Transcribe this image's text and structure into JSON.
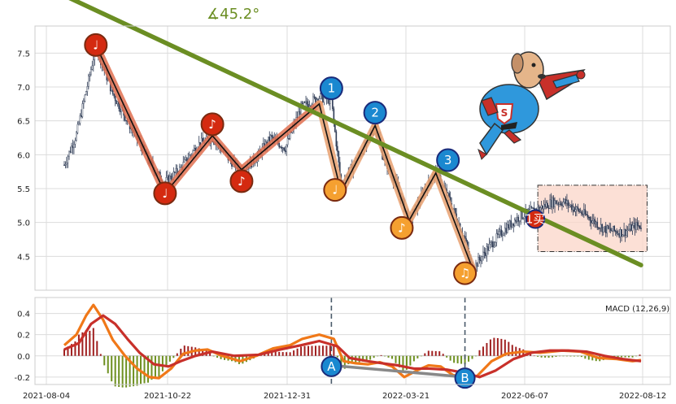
{
  "angle_label": "∡45.2°",
  "macd_label": "MACD (12,26,9)",
  "chart_data": [
    {
      "type": "candlestick",
      "x_tick_labels": [
        "2021-08-04",
        "2021-10-22",
        "2021-12-31",
        "2022-03-21",
        "2022-06-07",
        "2022-08-12"
      ],
      "ylim": [
        4.0,
        7.9
      ],
      "y_ticks": [
        4.5,
        5.0,
        5.5,
        6.0,
        6.5,
        7.0,
        7.5
      ],
      "grid": true,
      "colors": {
        "up": "#ffffff",
        "down": "#2e3b55",
        "trend": "#6b8e23",
        "zigzag_red": "#e07050",
        "zigzag_orange": "#e8a070",
        "box_fill": "#fbd5c8",
        "marker_red": "#d42a10",
        "marker_blue": "#1a88d0",
        "marker_orange": "#f5a030"
      },
      "price_path": [
        [
          0,
          5.85
        ],
        [
          10,
          6.3
        ],
        [
          20,
          7.1
        ],
        [
          26,
          7.6
        ],
        [
          40,
          6.9
        ],
        [
          55,
          6.4
        ],
        [
          70,
          5.9
        ],
        [
          82,
          5.58
        ],
        [
          95,
          5.78
        ],
        [
          110,
          6.15
        ],
        [
          122,
          6.25
        ],
        [
          135,
          5.95
        ],
        [
          146,
          5.75
        ],
        [
          158,
          5.95
        ],
        [
          170,
          6.25
        ],
        [
          182,
          6.1
        ],
        [
          195,
          6.7
        ],
        [
          210,
          6.85
        ],
        [
          220,
          6.8
        ],
        [
          228,
          5.55
        ],
        [
          240,
          5.9
        ],
        [
          250,
          6.2
        ],
        [
          256,
          6.45
        ],
        [
          262,
          6.0
        ],
        [
          275,
          5.5
        ],
        [
          284,
          5.0
        ],
        [
          296,
          5.45
        ],
        [
          306,
          5.75
        ],
        [
          318,
          5.3
        ],
        [
          330,
          4.75
        ],
        [
          336,
          4.3
        ],
        [
          348,
          4.6
        ],
        [
          360,
          4.85
        ],
        [
          372,
          5.05
        ],
        [
          382,
          5.15
        ],
        [
          390,
          5.2
        ],
        [
          402,
          5.3
        ],
        [
          412,
          5.3
        ],
        [
          430,
          5.1
        ],
        [
          445,
          4.9
        ],
        [
          460,
          4.85
        ],
        [
          470,
          4.95
        ]
      ],
      "zigzag_main": [
        [
          26,
          7.62
        ],
        [
          83,
          5.43
        ],
        [
          122,
          6.28
        ],
        [
          146,
          5.78
        ],
        [
          210,
          6.75
        ],
        [
          228,
          5.45
        ],
        [
          256,
          6.43
        ],
        [
          284,
          5.03
        ],
        [
          306,
          5.73
        ],
        [
          336,
          4.33
        ]
      ],
      "trendline": [
        [
          0,
          8.35
        ],
        [
          475,
          4.37
        ]
      ],
      "markers": [
        {
          "x": 26,
          "y": 7.62,
          "label": "♩",
          "color": "red"
        },
        {
          "x": 83,
          "y": 5.43,
          "label": "♩",
          "color": "red"
        },
        {
          "x": 122,
          "y": 6.45,
          "label": "♪",
          "color": "red"
        },
        {
          "x": 146,
          "y": 5.61,
          "label": "♪",
          "color": "red"
        },
        {
          "x": 220,
          "y": 6.98,
          "label": "1",
          "color": "blue"
        },
        {
          "x": 223,
          "y": 5.48,
          "label": "♩",
          "color": "orange"
        },
        {
          "x": 256,
          "y": 6.62,
          "label": "2",
          "color": "blue"
        },
        {
          "x": 278,
          "y": 4.92,
          "label": "♪",
          "color": "orange"
        },
        {
          "x": 316,
          "y": 5.92,
          "label": "3",
          "color": "blue"
        },
        {
          "x": 330,
          "y": 4.25,
          "label": "♫",
          "color": "orange"
        },
        {
          "x": 388,
          "y": 5.05,
          "label": "1买",
          "color": "red_small"
        }
      ],
      "box": {
        "x0": 390,
        "x1": 480,
        "y0": 4.57,
        "y1": 5.55
      }
    },
    {
      "type": "macd",
      "ylim": [
        -0.27,
        0.55
      ],
      "y_ticks": [
        -0.2,
        0.0,
        0.2,
        0.4
      ],
      "dif": [
        [
          0,
          0.1
        ],
        [
          10,
          0.2
        ],
        [
          18,
          0.38
        ],
        [
          24,
          0.48
        ],
        [
          32,
          0.34
        ],
        [
          40,
          0.15
        ],
        [
          50,
          0.0
        ],
        [
          60,
          -0.12
        ],
        [
          70,
          -0.2
        ],
        [
          78,
          -0.21
        ],
        [
          88,
          -0.12
        ],
        [
          98,
          0.02
        ],
        [
          108,
          0.05
        ],
        [
          118,
          0.06
        ],
        [
          130,
          0.0
        ],
        [
          145,
          -0.05
        ],
        [
          158,
          0.0
        ],
        [
          172,
          0.07
        ],
        [
          186,
          0.1
        ],
        [
          196,
          0.16
        ],
        [
          210,
          0.2
        ],
        [
          222,
          0.16
        ],
        [
          230,
          -0.05
        ],
        [
          240,
          -0.07
        ],
        [
          250,
          -0.08
        ],
        [
          260,
          -0.06
        ],
        [
          270,
          -0.1
        ],
        [
          280,
          -0.2
        ],
        [
          290,
          -0.14
        ],
        [
          300,
          -0.09
        ],
        [
          310,
          -0.1
        ],
        [
          320,
          -0.18
        ],
        [
          330,
          -0.21
        ],
        [
          340,
          -0.19
        ],
        [
          352,
          -0.05
        ],
        [
          364,
          0.02
        ],
        [
          378,
          0.04
        ],
        [
          392,
          0.03
        ],
        [
          410,
          0.05
        ],
        [
          425,
          0.04
        ],
        [
          440,
          -0.02
        ],
        [
          455,
          -0.03
        ],
        [
          468,
          -0.05
        ],
        [
          475,
          -0.04
        ]
      ],
      "dea": [
        [
          0,
          0.06
        ],
        [
          12,
          0.12
        ],
        [
          22,
          0.3
        ],
        [
          32,
          0.38
        ],
        [
          42,
          0.3
        ],
        [
          52,
          0.16
        ],
        [
          62,
          0.03
        ],
        [
          74,
          -0.08
        ],
        [
          86,
          -0.1
        ],
        [
          96,
          -0.05
        ],
        [
          108,
          0.0
        ],
        [
          122,
          0.04
        ],
        [
          140,
          0.0
        ],
        [
          160,
          0.01
        ],
        [
          178,
          0.06
        ],
        [
          195,
          0.1
        ],
        [
          210,
          0.14
        ],
        [
          225,
          0.09
        ],
        [
          235,
          -0.02
        ],
        [
          250,
          -0.05
        ],
        [
          262,
          -0.07
        ],
        [
          275,
          -0.09
        ],
        [
          288,
          -0.12
        ],
        [
          300,
          -0.12
        ],
        [
          315,
          -0.13
        ],
        [
          330,
          -0.16
        ],
        [
          342,
          -0.2
        ],
        [
          355,
          -0.14
        ],
        [
          370,
          -0.03
        ],
        [
          385,
          0.03
        ],
        [
          400,
          0.05
        ],
        [
          415,
          0.05
        ],
        [
          430,
          0.04
        ],
        [
          445,
          0.0
        ],
        [
          460,
          -0.03
        ],
        [
          475,
          -0.05
        ]
      ],
      "divergence_line": [
        [
          220,
          -0.09
        ],
        [
          330,
          -0.2
        ]
      ],
      "markers": [
        {
          "x": 220,
          "y": -0.1,
          "label": "A"
        },
        {
          "x": 330,
          "y": -0.21,
          "label": "B"
        }
      ],
      "vlines": [
        220,
        330
      ],
      "colors": {
        "dif": "#f07818",
        "dea": "#c8302a",
        "hist_pos": "#a02020",
        "hist_neg": "#6e9020",
        "vline": "#4a5a6a",
        "divergence": "#888888"
      }
    }
  ]
}
